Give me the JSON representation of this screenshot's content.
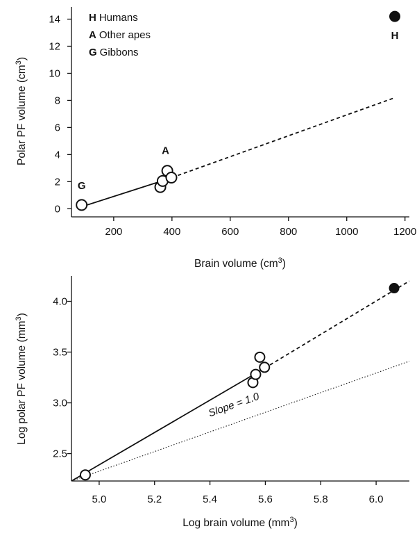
{
  "chart_data": [
    {
      "type": "scatter",
      "xlabel": "Brain volume (cm",
      "xlabel_sup": "3",
      "xlabel_end": ")",
      "ylabel": "Polar PF volume (cm",
      "ylabel_sup": "3",
      "ylabel_end": ")",
      "xlim": [
        55,
        1215
      ],
      "ylim": [
        -0.6,
        14.9
      ],
      "x_ticks": [
        200,
        400,
        600,
        800,
        1000,
        1200
      ],
      "y_ticks": [
        0,
        2,
        4,
        6,
        8,
        10,
        12,
        14
      ],
      "x_tick_labels": [
        "200",
        "400",
        "600",
        "800",
        "1000",
        "1200"
      ],
      "y_tick_labels": [
        "0",
        "2",
        "4",
        "6",
        "8",
        "10",
        "12",
        "14"
      ],
      "grid": false,
      "legend": {
        "position": "top-left",
        "entries": [
          {
            "key": "H",
            "text": "Humans"
          },
          {
            "key": "A",
            "text": "Other apes"
          },
          {
            "key": "G",
            "text": "Gibbons"
          }
        ]
      },
      "points_open": [
        {
          "x": 90,
          "y": 0.28
        },
        {
          "x": 360,
          "y": 1.6
        },
        {
          "x": 368,
          "y": 2.05
        },
        {
          "x": 384,
          "y": 2.8
        },
        {
          "x": 398,
          "y": 2.3
        }
      ],
      "points_filled": [
        {
          "x": 1165,
          "y": 14.2
        }
      ],
      "fit_solid": {
        "x": [
          90,
          380
        ],
        "y": [
          0.15,
          2.15
        ]
      },
      "fit_dashed": {
        "x": [
          380,
          1165
        ],
        "y": [
          2.15,
          8.2
        ]
      },
      "point_labels": [
        {
          "text": "G",
          "x": 90,
          "y": 1.45
        },
        {
          "text": "A",
          "x": 378,
          "y": 4.05
        },
        {
          "text": "H",
          "x": 1165,
          "y": 12.55
        }
      ]
    },
    {
      "type": "scatter",
      "xlabel": "Log brain volume (mm",
      "xlabel_sup": "3",
      "xlabel_end": ")",
      "ylabel": "Log polar PF volume (mm",
      "ylabel_sup": "3",
      "ylabel_end": ")",
      "xlim": [
        4.9,
        6.12
      ],
      "ylim": [
        2.23,
        4.25
      ],
      "x_ticks": [
        5.0,
        5.2,
        5.4,
        5.6,
        5.8,
        6.0
      ],
      "y_ticks": [
        2.5,
        3.0,
        3.5,
        4.0
      ],
      "x_tick_labels": [
        "5.0",
        "5.2",
        "5.4",
        "5.6",
        "5.8",
        "6.0"
      ],
      "y_tick_labels": [
        "2.5",
        "3.0",
        "3.5",
        "4.0"
      ],
      "grid": false,
      "points_open": [
        {
          "x": 4.95,
          "y": 2.29
        },
        {
          "x": 5.555,
          "y": 3.2
        },
        {
          "x": 5.565,
          "y": 3.28
        },
        {
          "x": 5.58,
          "y": 3.45
        },
        {
          "x": 5.597,
          "y": 3.35
        }
      ],
      "points_filled": [
        {
          "x": 6.065,
          "y": 4.13
        }
      ],
      "fit_solid": {
        "x": [
          4.9,
          5.578
        ],
        "y": [
          2.23,
          3.31
        ]
      },
      "fit_dashed": {
        "x": [
          5.578,
          6.12
        ],
        "y": [
          3.31,
          4.2
        ]
      },
      "reference_line": {
        "x": [
          4.9,
          6.12
        ],
        "y": [
          2.23,
          3.41
        ]
      },
      "annotation": {
        "text": "Slope = 1.0",
        "x": 5.49,
        "y": 2.95
      }
    }
  ]
}
